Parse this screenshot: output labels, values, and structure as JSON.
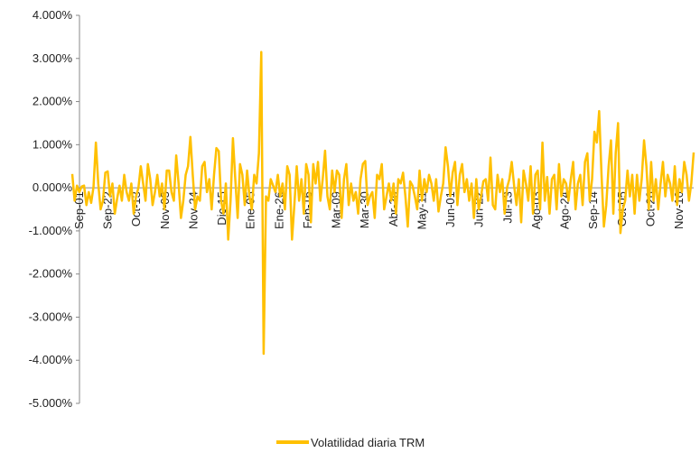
{
  "chart_data": {
    "type": "line",
    "title": "",
    "xlabel": "",
    "ylabel": "",
    "ylim": [
      -5,
      4
    ],
    "y_unit": "%",
    "yticks": [
      "4.000%",
      "3.000%",
      "2.000%",
      "1.000%",
      "0.000%",
      "-1.000%",
      "-2.000%",
      "-3.000%",
      "-4.000%",
      "-5.000%"
    ],
    "x_tick_labels": [
      "Sep-01",
      "Sep-22",
      "Oct-13",
      "Nov-03",
      "Nov-24",
      "Dic-15",
      "Ene-05",
      "Ene-26",
      "Feb-16",
      "Mar-09",
      "Mar-30",
      "Abr-20",
      "May-11",
      "Jun-01",
      "Jun-22",
      "Jul-13",
      "Ago-03",
      "Ago-24",
      "Sep-14",
      "Oct-05",
      "Oct-26",
      "Nov-16"
    ],
    "grid": false,
    "legend_position": "bottom",
    "series": [
      {
        "name": "Volatilidad diaria TRM",
        "color": "#FFC000",
        "values": [
          0.32,
          -0.3,
          0.05,
          -0.1,
          0.03,
          0.05,
          -0.4,
          -0.1,
          -0.35,
          0.02,
          1.05,
          0.1,
          -0.5,
          -0.3,
          0.35,
          0.38,
          -0.2,
          0.1,
          -0.6,
          -0.25,
          0.05,
          -0.3,
          0.3,
          -0.1,
          -0.3,
          0.1,
          -0.6,
          -0.2,
          0.0,
          0.5,
          0.1,
          -0.3,
          0.55,
          0.2,
          -0.4,
          -0.1,
          0.3,
          -0.2,
          0.1,
          -0.5,
          0.4,
          0.4,
          -0.1,
          -0.3,
          0.75,
          0.1,
          -0.7,
          -0.3,
          0.3,
          0.5,
          1.18,
          0.3,
          -0.5,
          -0.2,
          -0.3,
          0.5,
          0.6,
          -0.1,
          0.2,
          -0.5,
          0.3,
          0.92,
          0.85,
          -0.3,
          -0.6,
          0.1,
          -1.2,
          -0.3,
          1.15,
          0.2,
          -0.7,
          0.55,
          0.3,
          -0.4,
          0.4,
          -0.2,
          -0.5,
          0.3,
          0.1,
          0.8,
          3.15,
          -3.85,
          -0.2,
          -0.3,
          0.2,
          0.05,
          -0.1,
          0.3,
          -0.2,
          0.1,
          -0.5,
          0.5,
          0.3,
          -1.2,
          -0.4,
          0.5,
          -0.3,
          0.2,
          -0.6,
          0.55,
          0.3,
          -0.8,
          0.55,
          0.1,
          0.6,
          -0.3,
          0.2,
          0.86,
          -0.2,
          -0.5,
          0.4,
          -0.1,
          0.4,
          0.3,
          -0.7,
          0.2,
          0.55,
          -0.4,
          0.1,
          -0.3,
          -0.1,
          -0.6,
          0.2,
          0.55,
          0.62,
          -0.4,
          -0.2,
          -0.1,
          -0.7,
          0.3,
          0.2,
          0.55,
          -0.5,
          -0.2,
          0.1,
          -0.3,
          0.1,
          -0.6,
          0.2,
          0.1,
          0.35,
          -0.2,
          -0.9,
          0.15,
          0.05,
          -0.2,
          -0.5,
          0.4,
          -0.3,
          0.2,
          -0.1,
          0.3,
          0.1,
          -0.3,
          0.2,
          -0.55,
          -0.2,
          0.1,
          0.94,
          0.5,
          -0.2,
          0.35,
          0.6,
          -0.4,
          0.3,
          0.55,
          -0.1,
          0.2,
          -0.3,
          0.1,
          -0.7,
          0.2,
          -0.5,
          -0.2,
          0.15,
          0.2,
          -0.3,
          0.7,
          -0.4,
          -0.5,
          0.3,
          -0.1,
          0.2,
          -0.6,
          0.0,
          0.2,
          0.6,
          0.05,
          -0.4,
          0.2,
          -0.8,
          0.4,
          0.1,
          -0.3,
          0.5,
          -0.6,
          0.3,
          0.4,
          -0.5,
          1.05,
          -0.3,
          0.25,
          -0.6,
          0.2,
          0.3,
          -0.5,
          0.55,
          -0.2,
          0.2,
          0.1,
          -0.3,
          0.2,
          0.6,
          -0.5,
          0.1,
          0.3,
          -0.4,
          0.6,
          0.8,
          -0.3,
          0.2,
          1.3,
          1.05,
          1.78,
          0.3,
          -0.9,
          -0.4,
          0.5,
          1.1,
          -0.6,
          0.8,
          1.5,
          -1.05,
          -0.5,
          -0.3,
          0.4,
          -0.2,
          0.3,
          -0.6,
          0.3,
          -0.3,
          0.2,
          1.1,
          0.5,
          -0.5,
          0.6,
          -0.3,
          0.2,
          -0.5,
          0.1,
          0.6,
          -0.2,
          0.3,
          0.1,
          -0.3,
          0.5,
          -0.4,
          0.2,
          -0.1,
          0.6,
          0.3,
          -0.3,
          0.1,
          0.82
        ]
      }
    ]
  }
}
